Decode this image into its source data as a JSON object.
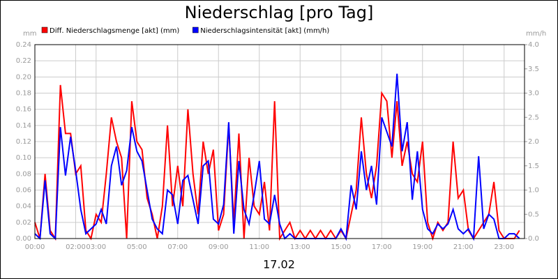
{
  "chart_data": {
    "type": "line",
    "title": "Niederschlag [pro Tag]",
    "xlabel": "17.02",
    "ylabel": "mm",
    "y2label": "mm/h",
    "x": [
      0,
      0.25,
      0.5,
      0.75,
      1,
      1.25,
      1.5,
      1.75,
      2,
      2.25,
      2.5,
      2.75,
      3,
      3.25,
      3.5,
      3.75,
      4,
      4.25,
      4.5,
      4.75,
      5,
      5.25,
      5.5,
      5.75,
      6,
      6.25,
      6.5,
      6.75,
      7,
      7.25,
      7.5,
      7.75,
      8,
      8.25,
      8.5,
      8.75,
      9,
      9.25,
      9.5,
      9.75,
      10,
      10.25,
      10.5,
      10.75,
      11,
      11.25,
      11.5,
      11.75,
      12,
      12.25,
      12.5,
      12.75,
      13,
      13.25,
      13.5,
      13.75,
      14,
      14.25,
      14.5,
      14.75,
      15,
      15.25,
      15.5,
      15.75,
      16,
      16.25,
      16.5,
      16.75,
      17,
      17.25,
      17.5,
      17.75,
      18,
      18.25,
      18.5,
      18.75,
      19,
      19.25,
      19.5,
      19.75,
      20,
      20.25,
      20.5,
      20.75,
      21,
      21.25,
      21.5,
      21.75,
      22,
      22.25,
      22.5,
      22.75,
      23,
      23.25,
      23.5,
      23.75
    ],
    "series": [
      {
        "name": "Diff. Niederschlagsmenge [akt] (mm)",
        "color": "#ff0000",
        "axis": "y",
        "values": [
          0.02,
          0.0,
          0.08,
          0.01,
          0.0,
          0.19,
          0.13,
          0.13,
          0.08,
          0.09,
          0.01,
          0.0,
          0.03,
          0.02,
          0.08,
          0.15,
          0.12,
          0.1,
          0.0,
          0.17,
          0.12,
          0.11,
          0.05,
          0.03,
          0.0,
          0.04,
          0.14,
          0.04,
          0.09,
          0.04,
          0.16,
          0.08,
          0.03,
          0.12,
          0.08,
          0.11,
          0.01,
          0.03,
          0.14,
          0.02,
          0.13,
          0.0,
          0.1,
          0.04,
          0.03,
          0.07,
          0.01,
          0.17,
          0.0,
          0.01,
          0.02,
          0.0,
          0.01,
          0.0,
          0.01,
          0.0,
          0.01,
          0.0,
          0.01,
          0.0,
          0.01,
          0.0,
          0.03,
          0.06,
          0.15,
          0.08,
          0.05,
          0.09,
          0.18,
          0.17,
          0.1,
          0.17,
          0.09,
          0.12,
          0.08,
          0.07,
          0.12,
          0.02,
          0.0,
          0.02,
          0.01,
          0.02,
          0.12,
          0.05,
          0.06,
          0.01,
          0.0,
          0.01,
          0.02,
          0.03,
          0.07,
          0.01,
          0.0,
          0.0,
          0.0,
          0.01
        ]
      },
      {
        "name": "Niederschlagsintensität [akt] (mm/h)",
        "color": "#0000ff",
        "axis": "y2",
        "values": [
          0.1,
          0.0,
          1.2,
          0.1,
          0.0,
          2.3,
          1.3,
          2.1,
          1.4,
          0.6,
          0.1,
          0.2,
          0.3,
          0.6,
          0.3,
          1.5,
          1.9,
          1.1,
          1.4,
          2.3,
          1.8,
          1.6,
          1.0,
          0.4,
          0.2,
          0.1,
          1.0,
          0.9,
          0.3,
          1.2,
          1.3,
          0.8,
          0.3,
          1.5,
          1.6,
          0.4,
          0.3,
          0.7,
          2.4,
          0.1,
          1.6,
          0.6,
          0.3,
          0.9,
          1.6,
          0.4,
          0.3,
          0.9,
          0.3,
          0.0,
          0.1,
          0.0,
          0.0,
          0.0,
          0.0,
          0.0,
          0.0,
          0.0,
          0.0,
          0.0,
          0.2,
          0.0,
          1.1,
          0.6,
          1.8,
          1.0,
          1.5,
          0.7,
          2.5,
          2.2,
          1.9,
          3.4,
          1.8,
          2.4,
          0.8,
          1.8,
          0.6,
          0.2,
          0.1,
          0.3,
          0.2,
          0.3,
          0.6,
          0.2,
          0.1,
          0.2,
          0.0,
          1.7,
          0.2,
          0.5,
          0.4,
          0.0,
          0.0,
          0.1,
          0.1,
          0.0
        ]
      }
    ],
    "xlim": [
      0,
      24
    ],
    "xticks": [
      {
        "value": 0,
        "label": "00:00"
      },
      {
        "value": 2,
        "label": "02:00"
      },
      {
        "value": 3,
        "label": "03:00"
      },
      {
        "value": 5,
        "label": "05:00"
      },
      {
        "value": 7,
        "label": "07:00"
      },
      {
        "value": 9,
        "label": "09:00"
      },
      {
        "value": 11,
        "label": "11:00"
      },
      {
        "value": 13,
        "label": "13:00"
      },
      {
        "value": 15,
        "label": "15:00"
      },
      {
        "value": 17,
        "label": "17:00"
      },
      {
        "value": 19,
        "label": "19:00"
      },
      {
        "value": 21,
        "label": "21:00"
      },
      {
        "value": 23,
        "label": "23:00"
      }
    ],
    "ylim": [
      0,
      0.24
    ],
    "yticks": [
      {
        "value": 0,
        "label": "0.00"
      },
      {
        "value": 0.02,
        "label": "0.02"
      },
      {
        "value": 0.04,
        "label": "0.04"
      },
      {
        "value": 0.06,
        "label": "0.06"
      },
      {
        "value": 0.08,
        "label": "0.08"
      },
      {
        "value": 0.1,
        "label": "0.10"
      },
      {
        "value": 0.12,
        "label": "0.12"
      },
      {
        "value": 0.14,
        "label": "0.14"
      },
      {
        "value": 0.16,
        "label": "0.16"
      },
      {
        "value": 0.18,
        "label": "0.18"
      },
      {
        "value": 0.2,
        "label": "0.20"
      },
      {
        "value": 0.22,
        "label": "0.22"
      },
      {
        "value": 0.24,
        "label": "0.24"
      }
    ],
    "y2lim": [
      0,
      4
    ],
    "y2ticks": [
      {
        "value": 0,
        "label": "0.0"
      },
      {
        "value": 0.5,
        "label": "0.5"
      },
      {
        "value": 1,
        "label": "1.0"
      },
      {
        "value": 1.5,
        "label": "1.5"
      },
      {
        "value": 2,
        "label": "2.0"
      },
      {
        "value": 2.5,
        "label": "2.5"
      },
      {
        "value": 3,
        "label": "3.0"
      },
      {
        "value": 3.5,
        "label": "3.5"
      },
      {
        "value": 4,
        "label": "4.0"
      }
    ],
    "grid": true
  }
}
